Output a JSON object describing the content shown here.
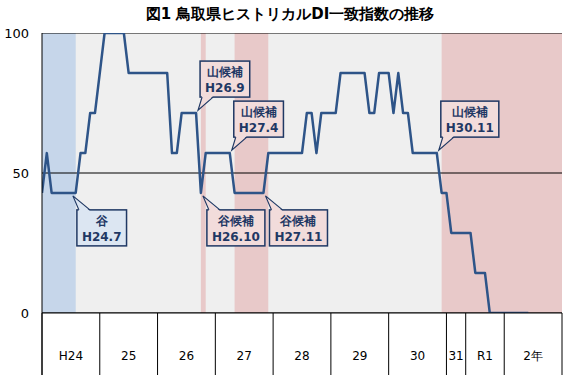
{
  "chart_data": {
    "type": "line",
    "title": "図1 鳥取県ヒストリカルDI一致指数の推移",
    "color": "#2e5488",
    "ylim": [
      0,
      100
    ],
    "yticks": [
      0,
      50,
      100
    ],
    "grid": true,
    "categories": [
      null,
      null,
      null,
      null,
      null,
      null,
      "H24",
      null,
      null,
      null,
      null,
      null,
      null,
      null,
      null,
      null,
      null,
      null,
      "25",
      null,
      null,
      null,
      null,
      null,
      null,
      null,
      null,
      null,
      null,
      null,
      "26",
      null,
      null,
      null,
      null,
      null,
      null,
      null,
      null,
      null,
      null,
      null,
      "27",
      null,
      null,
      null,
      null,
      null,
      null,
      null,
      null,
      null,
      null,
      null,
      "28",
      null,
      null,
      null,
      null,
      null,
      null,
      null,
      null,
      null,
      null,
      null,
      "29",
      null,
      null,
      null,
      null,
      null,
      null,
      null,
      null,
      null,
      null,
      null,
      "30",
      null,
      null,
      null,
      null,
      null,
      null,
      null,
      "31",
      null,
      null,
      null,
      null,
      null,
      "R1",
      null,
      null,
      null,
      null,
      null,
      null,
      null,
      null,
      null,
      "2年",
      null,
      null,
      null,
      null,
      null
    ],
    "group_starts": [
      0,
      12,
      24,
      36,
      48,
      60,
      72,
      84,
      88,
      96,
      108
    ],
    "values": [
      42.9,
      57.1,
      42.9,
      42.9,
      42.9,
      42.9,
      42.9,
      42.9,
      57.1,
      57.1,
      71.4,
      71.4,
      85.7,
      100,
      100,
      100,
      100,
      100,
      85.7,
      85.7,
      85.7,
      85.7,
      85.7,
      85.7,
      85.7,
      85.7,
      85.7,
      57.1,
      57.1,
      71.4,
      71.4,
      71.4,
      71.4,
      42.9,
      57.1,
      57.1,
      57.1,
      57.1,
      57.1,
      57.1,
      42.9,
      42.9,
      42.9,
      42.9,
      42.9,
      42.9,
      42.9,
      57.1,
      57.1,
      57.1,
      57.1,
      57.1,
      57.1,
      57.1,
      57.1,
      71.4,
      71.4,
      57.1,
      71.4,
      71.4,
      71.4,
      71.4,
      85.7,
      85.7,
      85.7,
      85.7,
      85.7,
      85.7,
      71.4,
      71.4,
      85.7,
      85.7,
      85.7,
      71.4,
      85.7,
      71.4,
      71.4,
      57.1,
      57.1,
      57.1,
      57.1,
      57.1,
      57.1,
      42.9,
      42.9,
      28.6,
      28.6,
      28.6,
      28.6,
      28.6,
      14.3,
      14.3,
      14.3,
      0,
      0,
      0,
      0,
      0,
      0,
      0,
      0,
      0,
      null,
      null,
      null,
      null,
      null,
      null
    ],
    "bands": [
      {
        "from": 0,
        "to": 7,
        "color": "#c6d6ea"
      },
      {
        "from": 33,
        "to": 34,
        "color": "#e8c9c9"
      },
      {
        "from": 40,
        "to": 47,
        "color": "#e8c9c9"
      },
      {
        "from": 83,
        "to": 108,
        "color": "#e8c9c9"
      }
    ],
    "annotations": [
      {
        "label": "谷",
        "date": "H24.7",
        "x": 6,
        "y": 42.9,
        "color": "#dce6f2"
      },
      {
        "label": "山候補",
        "date": "H26.9",
        "x": 32,
        "y": 71.4,
        "color": "#f2dcdb"
      },
      {
        "label": "谷候補",
        "date": "H26.10",
        "x": 33,
        "y": 42.9,
        "color": "#f2dcdb"
      },
      {
        "label": "山候補",
        "date": "H27.4",
        "x": 39,
        "y": 57.1,
        "color": "#f2dcdb"
      },
      {
        "label": "谷候補",
        "date": "H27.11",
        "x": 46,
        "y": 42.9,
        "color": "#f2dcdb"
      },
      {
        "label": "山候補",
        "date": "H30.11",
        "x": 82,
        "y": 57.1,
        "color": "#f2dcdb"
      }
    ]
  }
}
